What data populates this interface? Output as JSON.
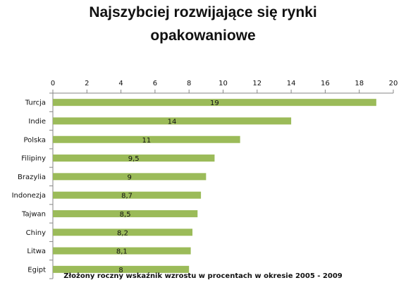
{
  "chart_data": {
    "type": "bar",
    "orientation": "horizontal",
    "title_lines": [
      "Najszybciej rozwijające się rynki",
      "opakowaniowe"
    ],
    "xlabel": "Złożony roczny wskaźnik  wzrostu w procentach w okresie 2005 - 2009",
    "xlim": [
      0,
      20
    ],
    "x_ticks": [
      "0",
      "2",
      "4",
      "6",
      "8",
      "10",
      "12",
      "14",
      "16",
      "18",
      "20"
    ],
    "grid": false,
    "categories": [
      "Turcja",
      "Indie",
      "Polska",
      "Filipiny",
      "Brazylia",
      "Indonezja",
      "Tajwan",
      "Chiny",
      "Litwa",
      "Egipt"
    ],
    "values": [
      19,
      14,
      11,
      9.5,
      9,
      8.7,
      8.5,
      8.2,
      8.1,
      8
    ],
    "data_labels": [
      "19",
      "14",
      "11",
      "9,5",
      "9",
      "8,7",
      "8,5",
      "8,2",
      "8,1",
      "8"
    ],
    "bar_color": "#9bbb59",
    "axis_color": "#868686"
  }
}
